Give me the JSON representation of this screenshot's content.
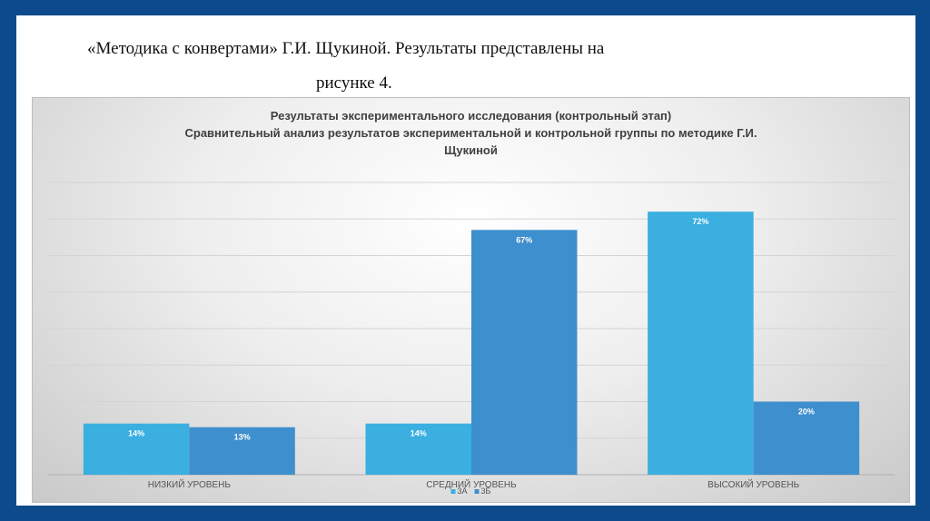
{
  "slide_heading": {
    "line1": "«Методика с конвертами» Г.И. Щукиной. Результаты представлены на",
    "line2": "рисунке 4."
  },
  "chart_data": {
    "type": "bar",
    "title_lines": [
      "Результаты экспериментального исследования (контрольный этап)",
      "Сравнительный анализ результатов экспериментальной и контрольной группы по методике Г.И.",
      "Щукиной"
    ],
    "categories": [
      "НИЗКИЙ УРОВЕНЬ",
      "СРЕДНИЙ УРОВЕНЬ",
      "ВЫСОКИЙ УРОВЕНЬ"
    ],
    "series": [
      {
        "name": "3А",
        "color": "#3aafe0",
        "values": [
          14,
          14,
          72
        ],
        "labels": [
          "14%",
          "14%",
          "72%"
        ]
      },
      {
        "name": "3Б",
        "color": "#3e8fcd",
        "values": [
          13,
          67,
          20
        ],
        "labels": [
          "13%",
          "67%",
          "20%"
        ]
      }
    ],
    "ylim": [
      0,
      80
    ],
    "grid": true,
    "legend_position": "bottom"
  }
}
